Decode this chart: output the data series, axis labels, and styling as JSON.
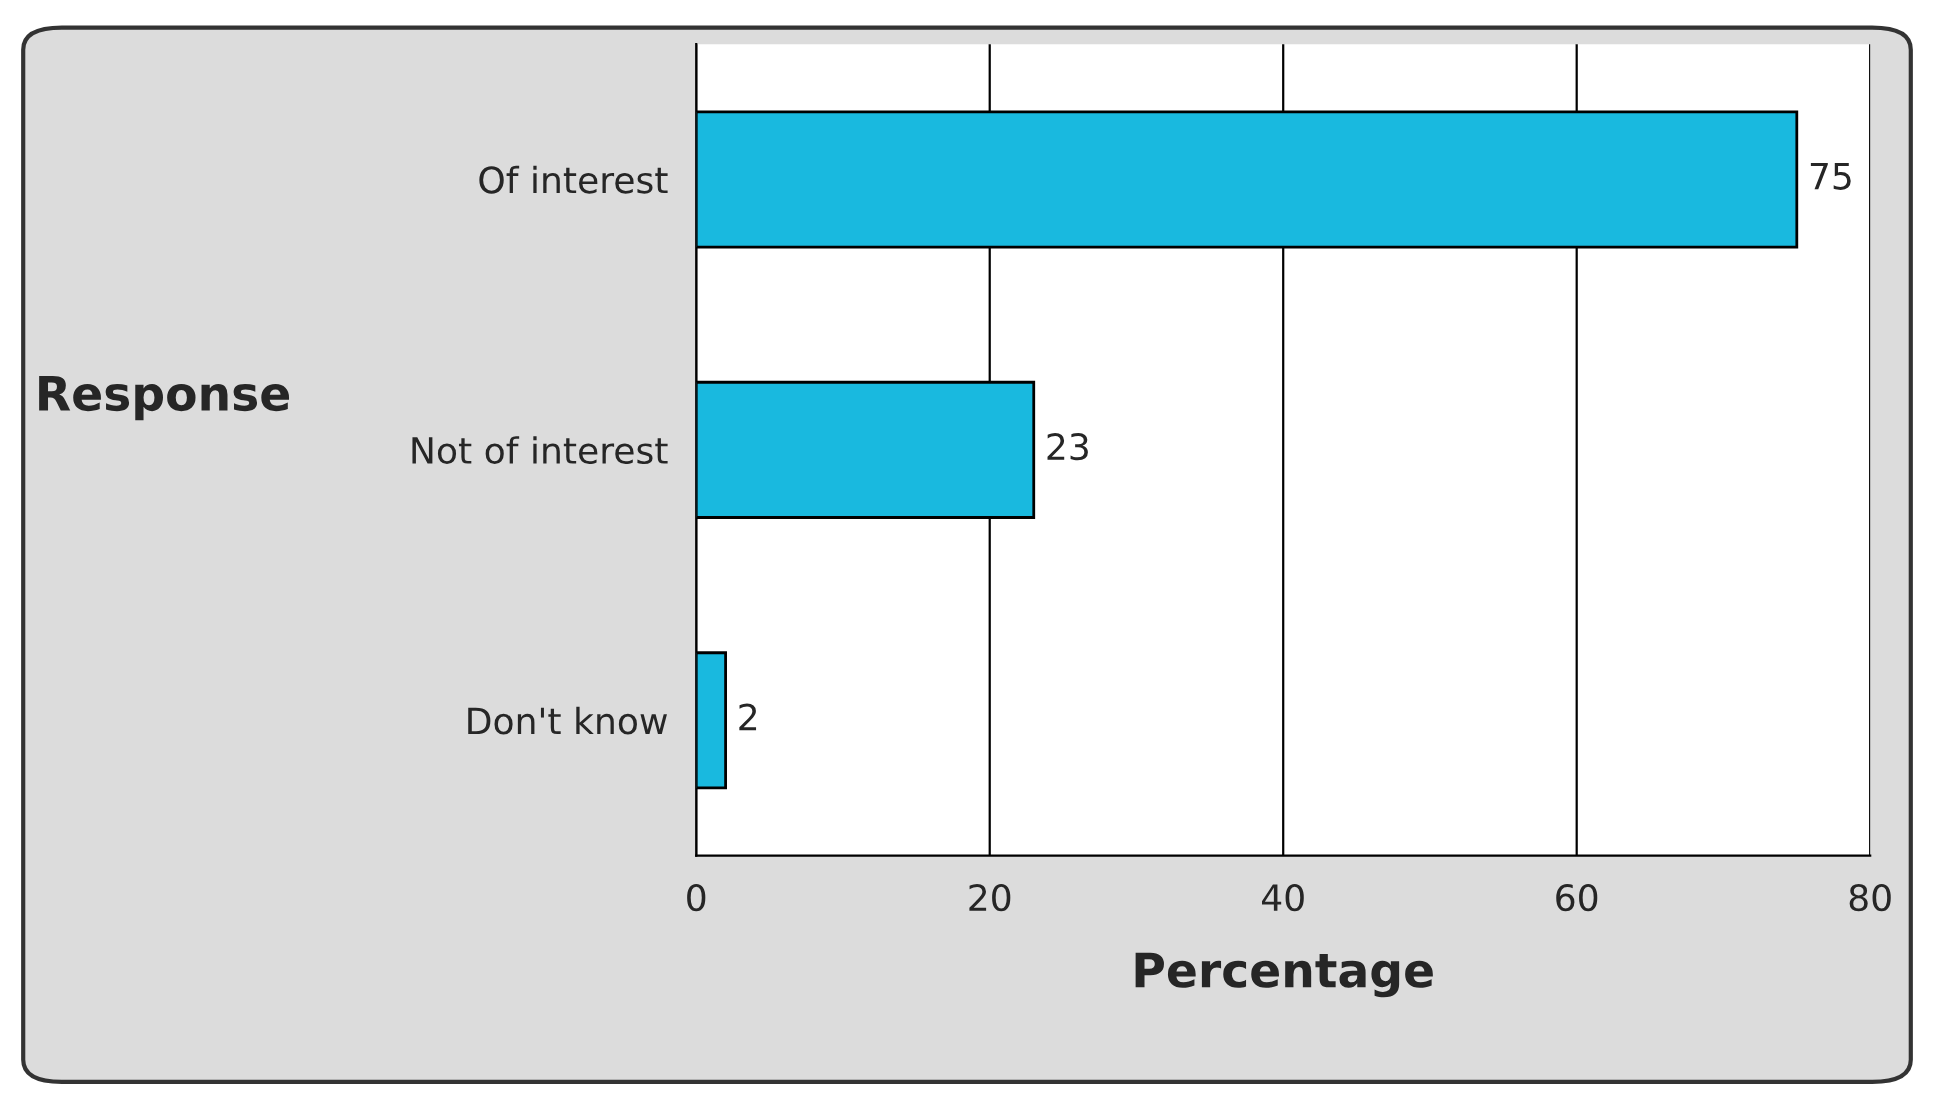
{
  "chart_data": {
    "type": "bar",
    "orientation": "horizontal",
    "xlabel": "Percentage",
    "ylabel": "Response",
    "categories": [
      "Of interest",
      "Not of interest",
      "Don't know"
    ],
    "values": [
      75,
      23,
      2
    ],
    "color": "#19b9df",
    "xlim": [
      0,
      80
    ],
    "xticks": [
      0,
      20,
      40,
      60,
      80
    ],
    "grid": "x",
    "data_labels": true
  }
}
